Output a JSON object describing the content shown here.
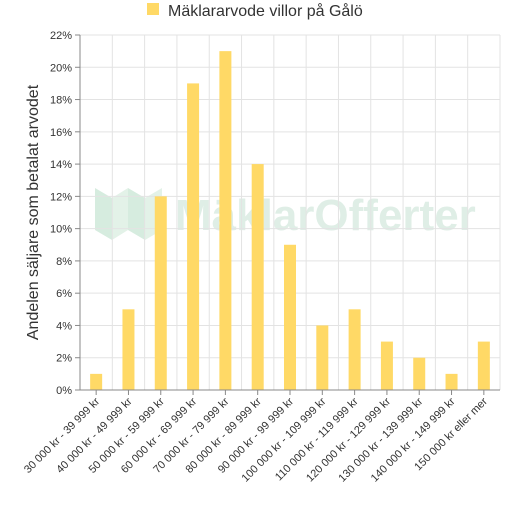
{
  "chart_data": {
    "type": "bar",
    "legend": {
      "label": "Mäklararvode villor på Gålö",
      "position": "top-center"
    },
    "ylabel": "Andelen säljare som betalat arvodet",
    "xlabel": "",
    "ylim": [
      0,
      22
    ],
    "ytick_step": 2,
    "ytick_suffix": "%",
    "grid": true,
    "categories": [
      "30 000 kr - 39 999 kr",
      "40 000 kr - 49 999 kr",
      "50 000 kr - 59 999 kr",
      "60 000 kr - 69 999 kr",
      "70 000 kr - 79 999 kr",
      "80 000 kr - 89 999 kr",
      "90 000 kr - 99 999 kr",
      "100 000 kr - 109 999 kr",
      "110 000 kr - 119 999 kr",
      "120 000 kr - 129 999 kr",
      "130 000 kr - 139 999 kr",
      "140 000 kr - 149 999 kr",
      "150 000 kr eller mer"
    ],
    "values": [
      1,
      5,
      12,
      19,
      21,
      14,
      9,
      4,
      5,
      3,
      2,
      1,
      3
    ],
    "colors": {
      "bar": "#ffd966",
      "grid": "#e3e3e3",
      "axis": "#888888"
    }
  },
  "watermark": {
    "text": "MäklarOfferter"
  }
}
